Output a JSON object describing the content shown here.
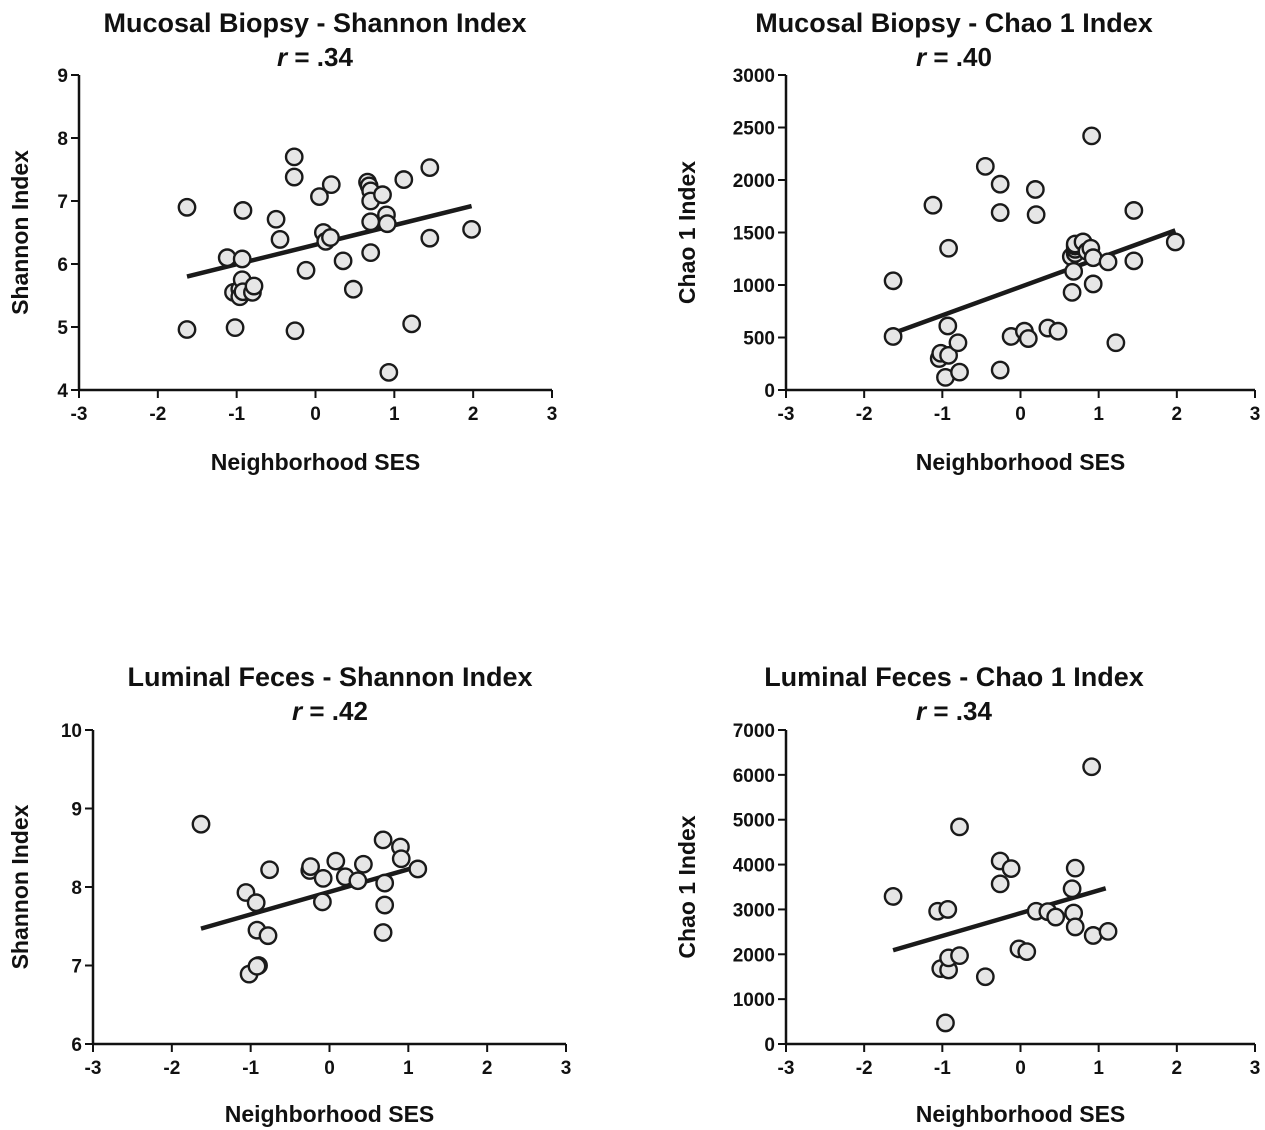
{
  "chart_data": [
    {
      "type": "scatter",
      "title": "Mucosal Biopsy - Shannon Index",
      "r_prefix": "r",
      "r_value": " = .34",
      "xlabel": "Neighborhood SES",
      "ylabel": "Shannon Index",
      "xlim": [
        -3,
        3
      ],
      "ylim": [
        4,
        9
      ],
      "xticks": [
        -3,
        -2,
        -1,
        0,
        1,
        2,
        3
      ],
      "yticks": [
        4,
        5,
        6,
        7,
        8,
        9
      ],
      "grid": false,
      "fit_line": {
        "x": [
          -1.63,
          1.98
        ],
        "y": [
          5.8,
          6.92
        ]
      },
      "points": {
        "x": [
          -1.63,
          -1.63,
          -1.12,
          -1.04,
          -1.02,
          -0.96,
          -0.96,
          -0.93,
          -0.93,
          -0.92,
          -0.92,
          -0.8,
          -0.78,
          -0.5,
          -0.45,
          -0.27,
          -0.27,
          -0.26,
          -0.12,
          0.05,
          0.1,
          0.13,
          0.19,
          0.2,
          0.35,
          0.48,
          0.66,
          0.68,
          0.7,
          0.7,
          0.7,
          0.7,
          0.85,
          0.9,
          0.91,
          0.93,
          1.12,
          1.22,
          1.45,
          1.45,
          1.98
        ],
        "y": [
          6.9,
          4.96,
          6.1,
          5.55,
          4.99,
          5.6,
          5.48,
          6.08,
          5.75,
          5.56,
          6.85,
          5.55,
          5.65,
          6.71,
          6.39,
          7.7,
          7.38,
          4.94,
          5.9,
          7.07,
          6.5,
          6.36,
          6.42,
          7.26,
          6.05,
          5.6,
          7.3,
          7.24,
          7.16,
          7.0,
          6.67,
          6.18,
          7.1,
          6.78,
          6.64,
          4.28,
          7.34,
          5.05,
          7.53,
          6.41,
          6.55
        ]
      }
    },
    {
      "type": "scatter",
      "title": "Mucosal Biopsy - Chao 1 Index",
      "r_prefix": "r",
      "r_value": " = .40",
      "xlabel": "Neighborhood SES",
      "ylabel": "Chao 1 Index",
      "xlim": [
        -3,
        3
      ],
      "ylim": [
        0,
        3000
      ],
      "xticks": [
        -3,
        -2,
        -1,
        0,
        1,
        2,
        3
      ],
      "yticks": [
        0,
        500,
        1000,
        1500,
        2000,
        2500,
        3000
      ],
      "grid": false,
      "fit_line": {
        "x": [
          -1.63,
          1.98
        ],
        "y": [
          540,
          1520
        ]
      },
      "points": {
        "x": [
          -1.63,
          -1.63,
          -1.12,
          -1.04,
          -1.02,
          -0.96,
          -0.92,
          -0.93,
          -0.8,
          -0.78,
          -0.92,
          -0.45,
          -0.26,
          -0.26,
          -0.26,
          -0.12,
          0.05,
          0.1,
          0.19,
          0.2,
          0.35,
          0.48,
          0.65,
          0.66,
          0.68,
          0.7,
          0.7,
          0.7,
          0.7,
          0.8,
          0.85,
          0.9,
          0.91,
          0.93,
          0.93,
          1.12,
          1.22,
          1.45,
          1.45,
          1.98
        ],
        "y": [
          1040,
          510,
          1760,
          300,
          350,
          120,
          330,
          610,
          450,
          170,
          1350,
          2130,
          1960,
          1690,
          190,
          510,
          560,
          490,
          1910,
          1670,
          590,
          560,
          1270,
          930,
          1130,
          1300,
          1340,
          1370,
          1390,
          1410,
          1320,
          1350,
          2420,
          1260,
          1010,
          1220,
          450,
          1230,
          1710,
          1410
        ]
      }
    },
    {
      "type": "scatter",
      "title": "Luminal Feces - Shannon Index",
      "r_prefix": "r",
      "r_value": " = .42",
      "xlabel": "Neighborhood SES",
      "ylabel": "Shannon Index",
      "xlim": [
        -3,
        3
      ],
      "ylim": [
        6,
        10
      ],
      "xticks": [
        -3,
        -2,
        -1,
        0,
        1,
        2,
        3
      ],
      "yticks": [
        6,
        7,
        8,
        9,
        10
      ],
      "grid": false,
      "fit_line": {
        "x": [
          -1.63,
          1.12
        ],
        "y": [
          7.47,
          8.26
        ]
      },
      "points": {
        "x": [
          -1.63,
          -1.06,
          -1.02,
          -0.93,
          -0.92,
          -0.9,
          -0.92,
          -0.78,
          -0.76,
          -0.25,
          -0.24,
          -0.08,
          -0.09,
          0.08,
          0.2,
          0.36,
          0.43,
          0.68,
          0.7,
          0.7,
          0.68,
          0.9,
          0.91,
          1.12
        ],
        "y": [
          8.8,
          7.93,
          6.89,
          7.8,
          7.45,
          7.0,
          6.99,
          7.38,
          8.22,
          8.21,
          8.26,
          8.11,
          7.81,
          8.33,
          8.13,
          8.08,
          8.29,
          8.6,
          7.77,
          8.05,
          7.42,
          8.51,
          8.36,
          8.23
        ]
      }
    },
    {
      "type": "scatter",
      "title": "Luminal Feces - Chao 1 Index",
      "r_prefix": "r",
      "r_value": " = .34",
      "xlabel": "Neighborhood SES",
      "ylabel": "Chao 1 Index",
      "xlim": [
        -3,
        3
      ],
      "ylim": [
        0,
        7000
      ],
      "xticks": [
        -3,
        -2,
        -1,
        0,
        1,
        2,
        3
      ],
      "yticks": [
        0,
        1000,
        2000,
        3000,
        4000,
        5000,
        6000,
        7000
      ],
      "grid": false,
      "fit_line": {
        "x": [
          -1.63,
          1.09
        ],
        "y": [
          2090,
          3470
        ]
      },
      "points": {
        "x": [
          -1.63,
          -1.06,
          -1.02,
          -0.96,
          -0.93,
          -0.92,
          -0.92,
          -0.78,
          -0.78,
          -0.45,
          -0.26,
          -0.26,
          -0.12,
          -0.02,
          0.08,
          0.2,
          0.35,
          0.45,
          0.66,
          0.68,
          0.7,
          0.7,
          0.91,
          0.93,
          1.12
        ],
        "y": [
          3290,
          2960,
          1680,
          470,
          3000,
          1650,
          1920,
          4840,
          1970,
          1500,
          4080,
          3570,
          3910,
          2120,
          2060,
          2960,
          2950,
          2830,
          3460,
          2920,
          3920,
          2610,
          6180,
          2420,
          2510
        ]
      }
    }
  ]
}
